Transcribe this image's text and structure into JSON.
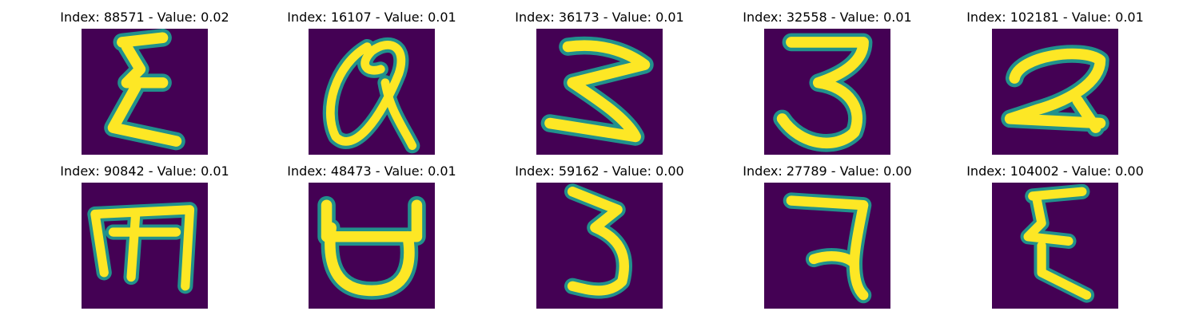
{
  "colors": {
    "background": "#440154",
    "stroke": "#fde725",
    "edge": "#21918c"
  },
  "panels": [
    {
      "title": "Index: 88571 - Value: 0.02",
      "glyph": "epsilon-like character"
    },
    {
      "title": "Index: 16107 - Value: 0.01",
      "glyph": "looped a-like character"
    },
    {
      "title": "Index: 36173 - Value: 0.01",
      "glyph": "3-like character"
    },
    {
      "title": "Index: 32558 - Value: 0.01",
      "glyph": "3 character"
    },
    {
      "title": "Index: 102181 - Value: 0.01",
      "glyph": "2-like character"
    },
    {
      "title": "Index: 90842 - Value: 0.01",
      "glyph": "m-like character"
    },
    {
      "title": "Index: 48473 - Value: 0.01",
      "glyph": "cup-like character"
    },
    {
      "title": "Index: 59162 - Value: 0.00",
      "glyph": "3-like character"
    },
    {
      "title": "Index: 27789 - Value: 0.00",
      "glyph": "7-like character"
    },
    {
      "title": "Index: 104002 - Value: 0.00",
      "glyph": "epsilon-like character"
    }
  ]
}
